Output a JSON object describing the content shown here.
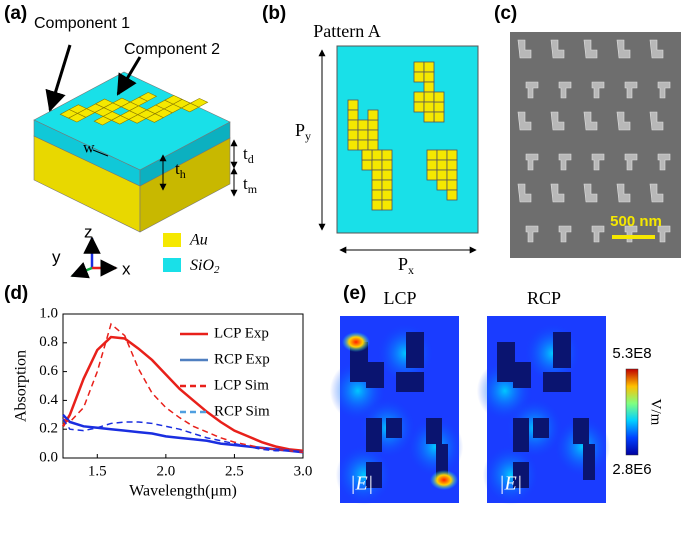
{
  "panels": {
    "a": {
      "label": "(a)",
      "component1": "Component 1",
      "component2": "Component 2",
      "w": "w",
      "th": {
        "base": "t",
        "sub": "h"
      },
      "td": {
        "base": "t",
        "sub": "d"
      },
      "tm": {
        "base": "t",
        "sub": "m"
      },
      "z": "z",
      "y": "y",
      "x": "x",
      "au": "Au",
      "sio2": {
        "base": "SiO",
        "sub": "2"
      }
    },
    "b": {
      "label": "(b)",
      "title": "Pattern A",
      "py": {
        "base": "P",
        "sub": "y"
      },
      "px": {
        "base": "P",
        "sub": "x"
      }
    },
    "c": {
      "label": "(c)",
      "scale": "500 nm"
    },
    "d": {
      "label": "(d)"
    },
    "e": {
      "label": "(e)",
      "lcp": "LCP",
      "rcp": "RCP",
      "field1": "|E|",
      "field2": "|E|",
      "cmax": "5.3E8",
      "cmin": "2.8E6",
      "unit": "V/m"
    }
  },
  "chart_data": {
    "type": "line",
    "xlabel": "Wavelength(μm)",
    "ylabel": "Absorption",
    "x": [
      1.25,
      1.3,
      1.4,
      1.5,
      1.6,
      1.7,
      1.8,
      1.9,
      2.0,
      2.1,
      2.2,
      2.3,
      2.4,
      2.5,
      2.6,
      2.7,
      2.8,
      2.9,
      3.0
    ],
    "series": [
      {
        "name": "LCP Exp",
        "color": "#e8201a",
        "dash": false,
        "values": [
          0.22,
          0.3,
          0.55,
          0.75,
          0.84,
          0.83,
          0.76,
          0.68,
          0.58,
          0.48,
          0.4,
          0.32,
          0.25,
          0.19,
          0.15,
          0.11,
          0.08,
          0.06,
          0.05
        ]
      },
      {
        "name": "RCP Exp",
        "color": "#1a2ee0",
        "dash": false,
        "legend_color": "#4f7fc0",
        "values": [
          0.3,
          0.25,
          0.22,
          0.21,
          0.2,
          0.19,
          0.18,
          0.17,
          0.15,
          0.14,
          0.13,
          0.12,
          0.1,
          0.09,
          0.08,
          0.07,
          0.06,
          0.05,
          0.04
        ]
      },
      {
        "name": "LCP Sim",
        "color": "#e8201a",
        "dash": true,
        "values": [
          0.27,
          0.25,
          0.35,
          0.6,
          0.93,
          0.85,
          0.62,
          0.45,
          0.35,
          0.28,
          0.22,
          0.18,
          0.14,
          0.11,
          0.09,
          0.07,
          0.06,
          0.05,
          0.04
        ]
      },
      {
        "name": "RCP Sim",
        "color": "#1a2ee0",
        "dash": true,
        "legend_color": "#4f9fe0",
        "values": [
          0.27,
          0.2,
          0.19,
          0.21,
          0.24,
          0.25,
          0.25,
          0.24,
          0.22,
          0.2,
          0.17,
          0.14,
          0.12,
          0.1,
          0.08,
          0.06,
          0.05,
          0.05,
          0.04
        ]
      }
    ],
    "xlim": [
      1.25,
      3.0
    ],
    "ylim": [
      0,
      1.0
    ],
    "xticks": [
      1.5,
      {
        "value": 2,
        "label": "2.0"
      },
      2.5,
      {
        "value": 3,
        "label": "3.0"
      }
    ],
    "yticks": [
      {
        "value": 0,
        "label": "0.0"
      },
      0.2,
      0.4,
      0.6,
      0.8,
      {
        "value": 1,
        "label": "1.0"
      }
    ]
  }
}
